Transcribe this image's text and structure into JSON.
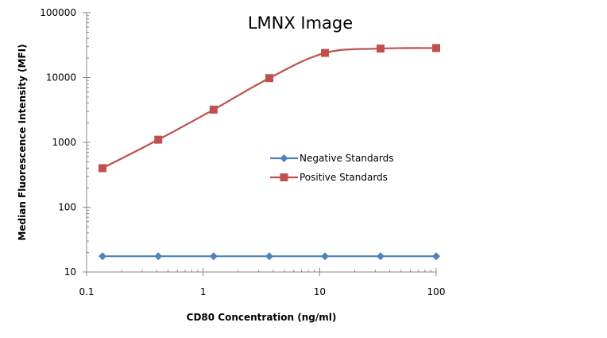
{
  "chart_data": {
    "type": "line",
    "title": "LMNX Image",
    "xlabel": "CD80 Concentration (ng/ml)",
    "ylabel": "Median Fluorescence Intensity (MFI)",
    "x_scale": "log",
    "y_scale": "log",
    "xlim": [
      0.1,
      100
    ],
    "ylim": [
      10,
      100000
    ],
    "x_ticks": [
      {
        "value": 0.1,
        "label": "0.1"
      },
      {
        "value": 1,
        "label": "1"
      },
      {
        "value": 10,
        "label": "10"
      },
      {
        "value": 100,
        "label": "100"
      }
    ],
    "y_ticks": [
      {
        "value": 10,
        "label": "10"
      },
      {
        "value": 100,
        "label": "100"
      },
      {
        "value": 1000,
        "label": "1000"
      },
      {
        "value": 10000,
        "label": "10000"
      },
      {
        "value": 100000,
        "label": "100000"
      }
    ],
    "grid": false,
    "legend_position": "center-right",
    "series": [
      {
        "name": "Negative Standards",
        "color": "#4F81BD",
        "marker": "diamond",
        "x": [
          0.137,
          0.412,
          1.23,
          3.7,
          11.1,
          33.3,
          100
        ],
        "y": [
          17.5,
          17.5,
          17.5,
          17.5,
          17.5,
          17.5,
          17.5
        ]
      },
      {
        "name": "Positive Standards",
        "color": "#C0504D",
        "marker": "square",
        "x": [
          0.137,
          0.412,
          1.23,
          3.7,
          11.1,
          33.3,
          100
        ],
        "y": [
          400,
          1100,
          3200,
          9800,
          24000,
          28000,
          28500
        ]
      }
    ]
  }
}
